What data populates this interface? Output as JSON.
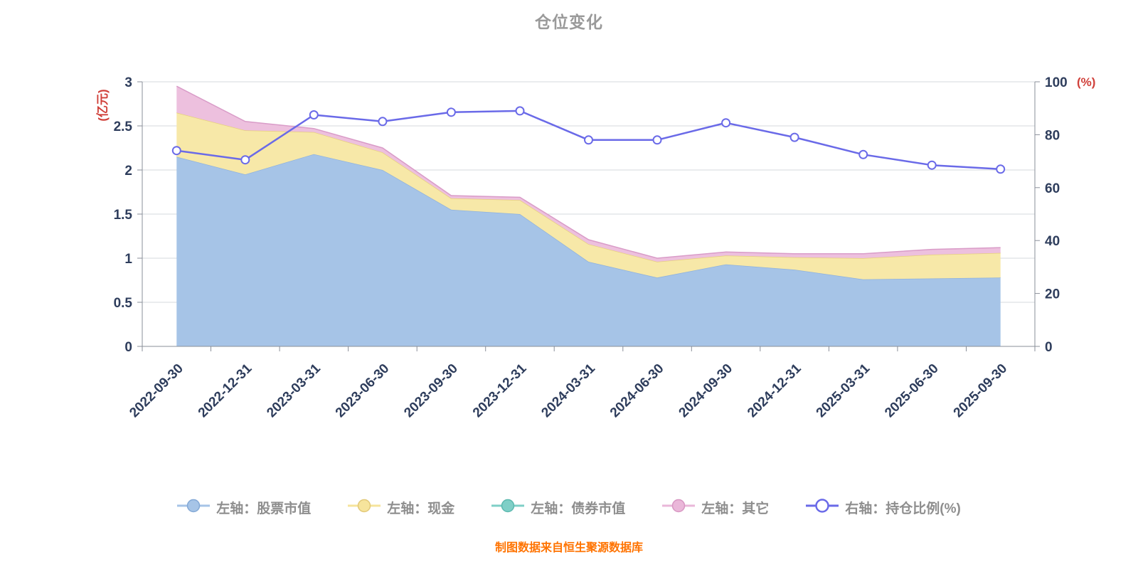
{
  "title": "仓位变化",
  "footer": "制图数据来自恒生聚源数据库",
  "legend": {
    "items": [
      {
        "id": "stock",
        "label": "左轴：股票市值",
        "color": "#a6c4e7",
        "ring": "#84a9d6",
        "hollow": false
      },
      {
        "id": "cash",
        "label": "左轴：现金",
        "color": "#f6e49c",
        "ring": "#e2c979",
        "hollow": false
      },
      {
        "id": "bond",
        "label": "左轴：债券市值",
        "color": "#7fcfc7",
        "ring": "#5cb9af",
        "hollow": false
      },
      {
        "id": "other",
        "label": "左轴：其它",
        "color": "#eab7d9",
        "ring": "#d897c3",
        "hollow": false
      },
      {
        "id": "ratio",
        "label": "右轴：持仓比例(%)",
        "color": "#6a6ae8",
        "ring": "#6a6ae8",
        "hollow": true
      }
    ]
  },
  "chart_data": {
    "type": "area",
    "title": "仓位变化",
    "categories": [
      "2022-09-30",
      "2022-12-31",
      "2023-03-31",
      "2023-06-30",
      "2023-09-30",
      "2023-12-31",
      "2024-03-31",
      "2024-06-30",
      "2024-09-30",
      "2024-12-31",
      "2025-03-31",
      "2025-06-30",
      "2025-09-30"
    ],
    "left_axis": {
      "name": "(亿元)",
      "min": 0,
      "max": 3,
      "ticks": [
        0,
        0.5,
        1,
        1.5,
        2,
        2.5,
        3
      ]
    },
    "right_axis": {
      "name": "(%)",
      "min": 0,
      "max": 100,
      "ticks": [
        0,
        20,
        40,
        60,
        80,
        100
      ]
    },
    "series": [
      {
        "id": "stock",
        "name": "左轴：股票市值",
        "type": "area",
        "axis": "left",
        "stack": "total",
        "color": "#a6c4e7",
        "edge": "#8fb2dd",
        "values": [
          2.15,
          1.95,
          2.18,
          2.0,
          1.55,
          1.5,
          0.96,
          0.78,
          0.93,
          0.87,
          0.76,
          0.77,
          0.78
        ]
      },
      {
        "id": "cash",
        "name": "左轴：现金",
        "type": "area",
        "axis": "left",
        "stack": "total",
        "color": "#f7e8a8",
        "edge": "#e6cf7e",
        "values": [
          0.5,
          0.5,
          0.25,
          0.2,
          0.13,
          0.16,
          0.2,
          0.18,
          0.1,
          0.14,
          0.24,
          0.27,
          0.28
        ]
      },
      {
        "id": "bond",
        "name": "左轴：债券市值",
        "type": "area",
        "axis": "left",
        "stack": "total",
        "color": "#7fcfc7",
        "edge": "#5cb9af",
        "values": [
          0,
          0,
          0,
          0,
          0,
          0,
          0,
          0,
          0,
          0,
          0,
          0,
          0
        ]
      },
      {
        "id": "other",
        "name": "左轴：其它",
        "type": "area",
        "axis": "left",
        "stack": "total",
        "color": "#edc0de",
        "edge": "#d99cc8",
        "values": [
          0.3,
          0.1,
          0.04,
          0.05,
          0.03,
          0.03,
          0.05,
          0.04,
          0.04,
          0.04,
          0.05,
          0.06,
          0.06
        ]
      },
      {
        "id": "ratio",
        "name": "右轴：持仓比例(%)",
        "type": "line",
        "axis": "right",
        "color": "#6a6ae8",
        "values": [
          74,
          70.5,
          87.5,
          85,
          88.5,
          89,
          78,
          78,
          84.5,
          79,
          72.5,
          68.5,
          67
        ]
      }
    ],
    "grid": true,
    "legend_position": "bottom",
    "footer": "制图数据来自恒生聚源数据库"
  }
}
